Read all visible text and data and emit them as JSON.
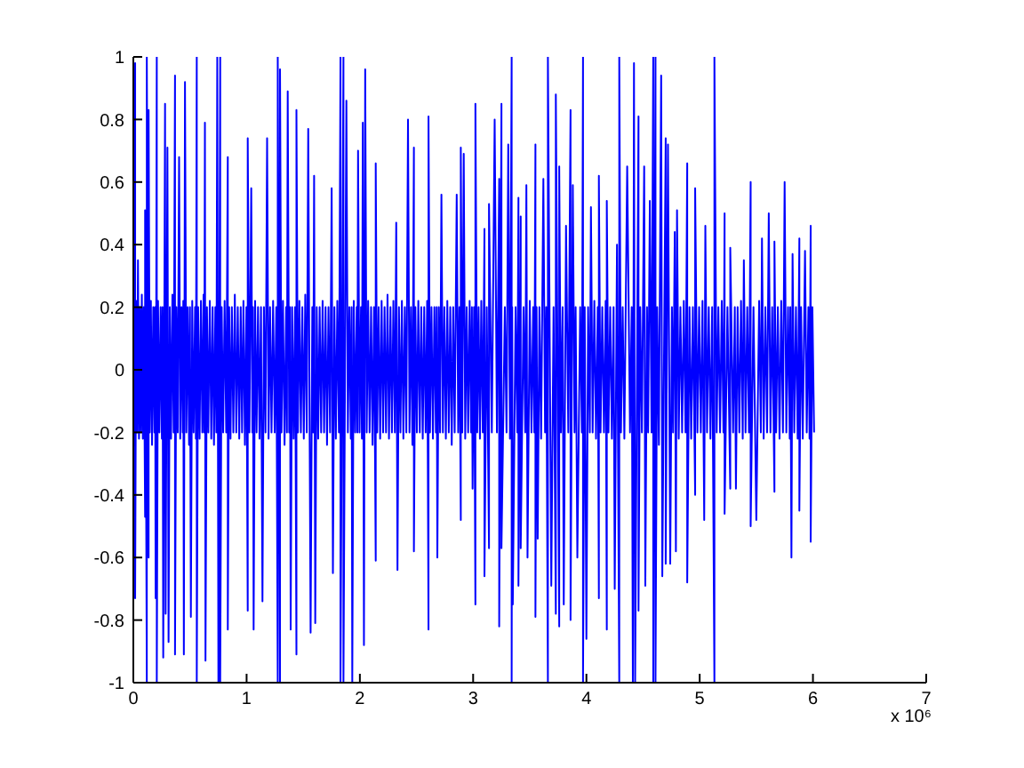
{
  "chart_data": {
    "type": "line",
    "x": [
      0,
      0.008,
      0.016,
      0.016,
      0.025,
      0.033,
      0.041,
      0.05,
      0.058,
      0.067,
      0.075,
      0.084,
      0.092,
      0.104,
      0.104,
      0.119,
      0.119,
      0.135,
      0.135,
      0.145,
      0.155,
      0.165,
      0.176,
      0.186,
      0.192,
      0.197,
      0.207,
      0.207,
      0.218,
      0.23,
      0.241,
      0.252,
      0.258,
      0.264,
      0.28,
      0.285,
      0.301,
      0.311,
      0.322,
      0.333,
      0.345,
      0.356,
      0.368,
      0.368,
      0.38,
      0.392,
      0.404,
      0.414,
      0.425,
      0.436,
      0.441,
      0.446,
      0.456,
      0.468,
      0.48,
      0.492,
      0.5,
      0.508,
      0.52,
      0.532,
      0.545,
      0.552,
      0.56,
      0.56,
      0.572,
      0.585,
      0.597,
      0.609,
      0.62,
      0.626,
      0.632,
      0.637,
      0.65,
      0.662,
      0.675,
      0.688,
      0.7,
      0.712,
      0.724,
      0.733,
      0.741,
      0.751,
      0.767,
      0.767,
      0.78,
      0.793,
      0.806,
      0.82,
      0.834,
      0.834,
      0.846,
      0.858,
      0.87,
      0.883,
      0.896,
      0.909,
      0.922,
      0.935,
      0.948,
      0.96,
      0.972,
      0.985,
      0.998,
      1.01,
      1.01,
      1.025,
      1.041,
      1.051,
      1.056,
      1.062,
      1.075,
      1.088,
      1.101,
      1.114,
      1.127,
      1.14,
      1.153,
      1.167,
      1.181,
      1.194,
      1.207,
      1.22,
      1.234,
      1.248,
      1.262,
      1.275,
      1.275,
      1.295,
      1.295,
      1.308,
      1.321,
      1.335,
      1.349,
      1.356,
      1.363,
      1.376,
      1.383,
      1.389,
      1.402,
      1.415,
      1.428,
      1.44,
      1.44,
      1.453,
      1.466,
      1.479,
      1.492,
      1.505,
      1.518,
      1.531,
      1.544,
      1.565,
      1.58,
      1.588,
      1.596,
      1.606,
      1.619,
      1.632,
      1.645,
      1.658,
      1.671,
      1.684,
      1.697,
      1.71,
      1.723,
      1.737,
      1.751,
      1.762,
      1.775,
      1.788,
      1.801,
      1.815,
      1.829,
      1.829,
      1.855,
      1.855,
      1.881,
      1.894,
      1.907,
      1.92,
      1.927,
      1.933,
      1.946,
      1.959,
      1.972,
      1.978,
      1.984,
      1.997,
      2.01,
      2.018,
      2.026,
      2.036,
      2.047,
      2.06,
      2.073,
      2.086,
      2.099,
      2.112,
      2.125,
      2.14,
      2.14,
      2.153,
      2.166,
      2.179,
      2.192,
      2.205,
      2.218,
      2.231,
      2.244,
      2.257,
      2.27,
      2.283,
      2.296,
      2.309,
      2.321,
      2.332,
      2.345,
      2.358,
      2.371,
      2.384,
      2.397,
      2.41,
      2.425,
      2.438,
      2.451,
      2.464,
      2.477,
      2.477,
      2.49,
      2.503,
      2.516,
      2.529,
      2.542,
      2.555,
      2.568,
      2.581,
      2.594,
      2.606,
      2.606,
      2.619,
      2.632,
      2.645,
      2.658,
      2.671,
      2.678,
      2.684,
      2.697,
      2.708,
      2.72,
      2.733,
      2.746,
      2.759,
      2.772,
      2.785,
      2.798,
      2.811,
      2.824,
      2.837,
      2.855,
      2.868,
      2.879,
      2.891,
      2.891,
      2.904,
      2.917,
      2.93,
      2.943,
      2.956,
      2.969,
      2.982,
      2.989,
      2.995,
      3.008,
      3.02,
      3.02,
      3.036,
      3.048,
      3.06,
      3.072,
      3.085,
      3.1,
      3.1,
      3.12,
      3.14,
      3.14,
      3.165,
      3.19,
      3.21,
      3.23,
      3.23,
      3.25,
      3.25,
      3.28,
      3.295,
      3.31,
      3.325,
      3.34,
      3.34,
      3.345,
      3.35,
      3.375,
      3.39,
      3.4,
      3.4,
      3.42,
      3.42,
      3.445,
      3.46,
      3.47,
      3.48,
      3.5,
      3.515,
      3.53,
      3.54,
      3.55,
      3.55,
      3.56,
      3.57,
      3.585,
      3.6,
      3.62,
      3.635,
      3.645,
      3.66,
      3.66,
      3.69,
      3.71,
      3.73,
      3.73,
      3.76,
      3.76,
      3.775,
      3.79,
      3.8,
      3.82,
      3.84,
      3.86,
      3.86,
      3.88,
      3.895,
      3.905,
      3.92,
      3.945,
      3.96,
      3.97,
      3.97,
      3.985,
      4,
      4.015,
      4.03,
      4.04,
      4.055,
      4.07,
      4.085,
      4.1,
      4.11,
      4.11,
      4.125,
      4.14,
      4.155,
      4.17,
      4.18,
      4.18,
      4.195,
      4.21,
      4.225,
      4.24,
      4.25,
      4.27,
      4.29,
      4.29,
      4.305,
      4.32,
      4.335,
      4.36,
      4.385,
      4.4,
      4.41,
      4.42,
      4.43,
      4.46,
      4.46,
      4.475,
      4.49,
      4.51,
      4.52,
      4.535,
      4.545,
      4.56,
      4.575,
      4.59,
      4.59,
      4.61,
      4.61,
      4.625,
      4.64,
      4.66,
      4.67,
      4.7,
      4.7,
      4.72,
      4.74,
      4.755,
      4.765,
      4.78,
      4.79,
      4.8,
      4.815,
      4.83,
      4.845,
      4.86,
      4.875,
      4.89,
      4.89,
      4.91,
      4.925,
      4.94,
      4.96,
      4.96,
      4.98,
      4.995,
      5.01,
      5.025,
      5.04,
      5.05,
      5.065,
      5.08,
      5.095,
      5.11,
      5.13,
      5.13,
      5.15,
      5.165,
      5.18,
      5.195,
      5.21,
      5.22,
      5.22,
      5.245,
      5.27,
      5.27,
      5.295,
      5.31,
      5.32,
      5.335,
      5.35,
      5.365,
      5.38,
      5.39,
      5.405,
      5.42,
      5.435,
      5.45,
      5.45,
      5.475,
      5.5,
      5.525,
      5.54,
      5.55,
      5.565,
      5.58,
      5.595,
      5.61,
      5.625,
      5.64,
      5.66,
      5.66,
      5.675,
      5.69,
      5.705,
      5.72,
      5.735,
      5.75,
      5.765,
      5.78,
      5.795,
      5.8,
      5.81,
      5.82,
      5.835,
      5.85,
      5.865,
      5.88,
      5.88,
      5.895,
      5.91,
      5.93,
      5.945,
      5.96,
      5.97,
      5.98,
      5.98,
      5.995,
      6.01
    ],
    "series": [
      {
        "color": "#0000ff",
        "values": [
          0.18,
          -0.24,
          0.98,
          -0.73,
          0.22,
          -0.2,
          0.35,
          -0.22,
          0.2,
          -0.2,
          0.24,
          -0.22,
          0.2,
          -0.47,
          0.51,
          -1,
          1,
          -0.6,
          0.83,
          -0.2,
          0.22,
          -0.24,
          0.2,
          -0.2,
          0.2,
          -0.73,
          1,
          -1,
          0.22,
          -0.2,
          0.2,
          -0.22,
          0.2,
          -0.92,
          0.85,
          -0.78,
          0.71,
          -0.87,
          0.2,
          -0.22,
          0.24,
          -0.2,
          0.94,
          -0.91,
          0.2,
          -0.2,
          0.68,
          -0.22,
          0.2,
          -0.2,
          0.22,
          -0.91,
          0.92,
          -0.2,
          0.2,
          -0.24,
          0.2,
          -0.79,
          0.22,
          -0.2,
          0.2,
          -0.22,
          1,
          -1,
          0.2,
          -0.22,
          0.22,
          -0.2,
          0.24,
          -0.2,
          0.79,
          -0.93,
          0.2,
          -0.2,
          0.22,
          -0.22,
          0.2,
          -0.24,
          0.2,
          -0.2,
          1,
          -1,
          1,
          -1,
          0.2,
          -0.2,
          0.22,
          -0.2,
          0.68,
          -0.83,
          0.2,
          -0.22,
          0.2,
          -0.2,
          0.24,
          -0.2,
          0.2,
          -0.22,
          0.2,
          -0.2,
          0.22,
          -0.24,
          0.2,
          -0.77,
          0.74,
          -0.2,
          0.58,
          -0.2,
          0.2,
          -0.83,
          0.22,
          -0.2,
          0.2,
          -0.22,
          0.2,
          -0.74,
          0.2,
          -0.2,
          0.74,
          -0.22,
          0.2,
          -0.2,
          0.22,
          -0.2,
          0.2,
          -1,
          1,
          -1,
          0.96,
          -0.2,
          0.22,
          -0.24,
          0.2,
          -0.2,
          0.89,
          -0.2,
          0.2,
          -0.83,
          0.2,
          -0.22,
          0.2,
          -0.91,
          0.83,
          -0.2,
          0.22,
          -0.2,
          0.2,
          -0.22,
          0.24,
          -0.2,
          0.77,
          -0.84,
          0.2,
          -0.2,
          0.62,
          -0.81,
          0.2,
          -0.22,
          0.2,
          -0.2,
          0.22,
          -0.2,
          0.2,
          -0.24,
          0.2,
          -0.2,
          0.58,
          -0.65,
          0.2,
          -0.22,
          0.22,
          -0.2,
          1,
          -1,
          1,
          -1,
          0.86,
          -0.2,
          0.2,
          -0.22,
          0.2,
          -1,
          0.22,
          -0.2,
          0.2,
          -0.2,
          0.7,
          -0.2,
          0.2,
          -0.22,
          0.79,
          -0.88,
          0.96,
          -0.2,
          0.22,
          -0.2,
          0.2,
          -0.24,
          0.2,
          -0.61,
          0.66,
          -0.2,
          0.2,
          -0.22,
          0.22,
          -0.2,
          0.2,
          -0.2,
          0.24,
          -0.22,
          0.2,
          -0.2,
          0.22,
          -0.2,
          0.47,
          -0.64,
          0.2,
          -0.2,
          0.22,
          -0.22,
          0.2,
          -0.2,
          0.8,
          -0.2,
          0.2,
          -0.24,
          0.71,
          -0.58,
          0.2,
          -0.2,
          0.22,
          -0.2,
          0.2,
          -0.22,
          0.2,
          -0.2,
          0.22,
          -0.83,
          0.81,
          -0.2,
          0.2,
          -0.22,
          0.2,
          -0.2,
          0.2,
          -0.6,
          0.2,
          -0.2,
          0.56,
          -0.2,
          0.2,
          -0.22,
          0.22,
          -0.2,
          0.2,
          -0.24,
          0.2,
          -0.2,
          0.56,
          -0.2,
          0.2,
          -0.48,
          0.71,
          -0.2,
          0.69,
          -0.22,
          0.2,
          -0.2,
          0.22,
          -0.2,
          0.2,
          -0.38,
          0.2,
          -0.75,
          0.85,
          -0.2,
          0.2,
          -0.22,
          0.22,
          -0.2,
          0.45,
          -0.66,
          0.2,
          -0.57,
          0.53,
          -0.2,
          0.8,
          -0.2,
          0.61,
          -0.82,
          0.85,
          -0.57,
          0.2,
          -0.2,
          0.72,
          -0.22,
          1,
          -1,
          0.2,
          -0.75,
          0.2,
          -0.2,
          0.55,
          -0.69,
          0.49,
          -0.57,
          0.2,
          -0.2,
          0.59,
          -0.6,
          0.22,
          -0.2,
          0.2,
          -0.2,
          0.72,
          -0.79,
          0.2,
          -0.54,
          0.2,
          -0.22,
          0.61,
          -0.2,
          0.2,
          -1,
          1,
          -0.69,
          0.2,
          -0.78,
          0.88,
          -0.82,
          0.65,
          -0.2,
          0.2,
          -0.75,
          0.46,
          -0.2,
          0.83,
          -0.8,
          0.59,
          -0.2,
          0.2,
          -0.6,
          0.2,
          -0.2,
          1,
          -1,
          0.2,
          -0.86,
          0.2,
          -0.2,
          0.52,
          -0.2,
          0.22,
          -0.22,
          0.2,
          -0.73,
          0.62,
          -0.2,
          0.2,
          -0.2,
          0.22,
          -0.83,
          0.54,
          -0.2,
          0.2,
          -0.22,
          0.2,
          -0.7,
          0.4,
          -1,
          1,
          -0.2,
          0.2,
          -0.22,
          0.65,
          -0.2,
          0.2,
          -1,
          0.98,
          -1,
          0.81,
          -0.77,
          0.2,
          -0.2,
          0.65,
          -0.69,
          0.2,
          -0.2,
          0.54,
          -0.2,
          1,
          -1,
          1,
          -1,
          0.2,
          -0.24,
          0.94,
          -0.66,
          0.74,
          -0.62,
          0.72,
          -0.62,
          0.2,
          -0.2,
          0.44,
          -0.58,
          0.51,
          -0.22,
          0.2,
          -0.2,
          0.22,
          -0.2,
          0.66,
          -0.68,
          0.2,
          -0.22,
          0.2,
          -0.4,
          0.58,
          -0.2,
          0.2,
          -0.2,
          0.22,
          -0.48,
          0.46,
          -0.2,
          0.2,
          -0.22,
          0.2,
          -1,
          1,
          -0.2,
          0.2,
          -0.2,
          0.22,
          -0.2,
          0.5,
          -0.46,
          0.2,
          -0.38,
          0.39,
          -0.2,
          0.2,
          -0.38,
          0.2,
          -0.2,
          0.22,
          -0.22,
          0.35,
          -0.2,
          0.2,
          -0.2,
          0.6,
          -0.5,
          0.2,
          -0.48,
          0.22,
          -0.2,
          0.42,
          -0.22,
          0.2,
          -0.2,
          0.5,
          -0.2,
          0.2,
          -0.39,
          0.41,
          -0.2,
          0.2,
          -0.22,
          0.22,
          -0.2,
          0.6,
          -0.2,
          0.2,
          -0.22,
          0.2,
          -0.6,
          0.37,
          -0.2,
          0.2,
          -0.22,
          0.42,
          -0.45,
          0.2,
          -0.22,
          0.38,
          -0.2,
          0.2,
          -0.22,
          0.46,
          -0.55,
          0.2,
          -0.2
        ]
      }
    ],
    "xlim": [
      0,
      7
    ],
    "xticks": [
      0,
      1,
      2,
      3,
      4,
      5,
      6,
      7
    ],
    "ylim": [
      -1,
      1
    ],
    "yticks": [
      -1,
      -0.8,
      -0.6,
      -0.4,
      -0.2,
      0,
      0.2,
      0.4,
      0.6,
      0.8,
      1
    ],
    "annotations": [
      "x 10⁶"
    ]
  }
}
